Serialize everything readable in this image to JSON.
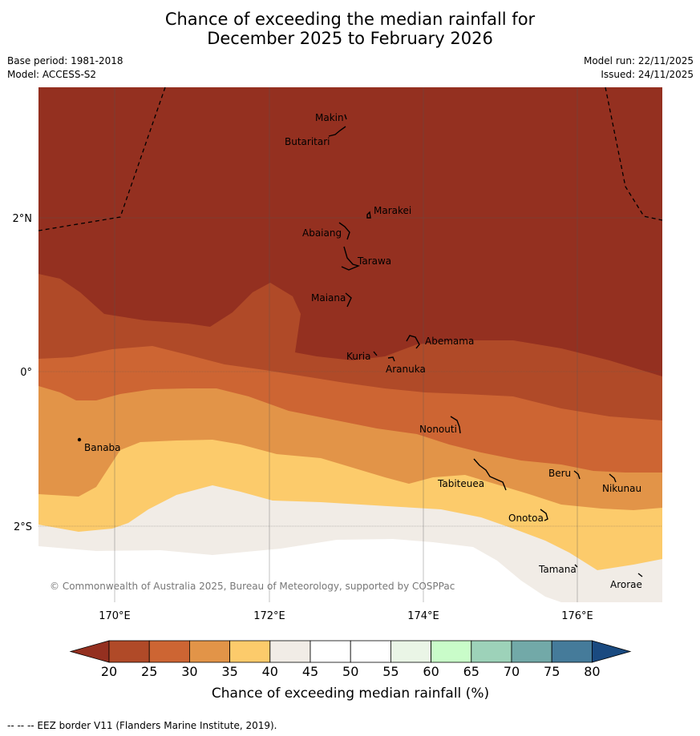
{
  "title": {
    "line1": "Chance of exceeding the median rainfall for",
    "line2": "December 2025 to February 2026"
  },
  "meta_left": {
    "base_period": "Base period: 1981-2018",
    "model": "Model: ACCESS-S2"
  },
  "meta_right": {
    "model_run": "Model run: 22/11/2025",
    "issued": "Issued: 24/11/2025"
  },
  "map": {
    "lat_labels": [
      "2°N",
      "0°",
      "2°S"
    ],
    "lon_labels": [
      "170°E",
      "172°E",
      "174°E",
      "176°E"
    ],
    "copyright": "© Commonwealth of Australia 2025, Bureau of Meteorology, supported by COSPPac",
    "islands": [
      "Makin",
      "Butaritari",
      "Marakei",
      "Abaiang",
      "Tarawa",
      "Maiana",
      "Abemama",
      "Kuria",
      "Aranuka",
      "Nonouti",
      "Banaba",
      "Tabiteuea",
      "Beru",
      "Nikunau",
      "Onotoa",
      "Tamana",
      "Arorae"
    ]
  },
  "colorbar": {
    "ticks": [
      "20",
      "25",
      "30",
      "35",
      "40",
      "45",
      "50",
      "55",
      "60",
      "65",
      "70",
      "75",
      "80"
    ],
    "label": "Chance of exceeding median rainfall (%)",
    "colors": {
      "under": "#943020",
      "bins": [
        "#b04a28",
        "#cd6533",
        "#e29448",
        "#fccb6b",
        "#f1ece6",
        "#ffffff",
        "#ffffff",
        "#eaf5e6",
        "#c9fcc9",
        "#9dd2b9",
        "#72a9a8",
        "#457b9a"
      ],
      "over": "#1a4a80"
    }
  },
  "footer": {
    "eez_credit": "--  --  -- EEZ border V11 (Flanders Marine Institute, 2019)."
  }
}
